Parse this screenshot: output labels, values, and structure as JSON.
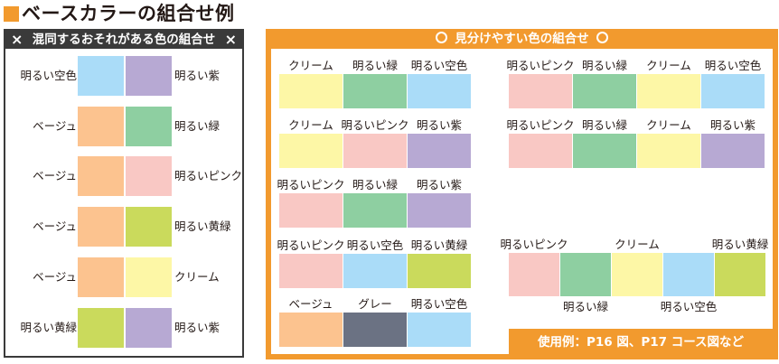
{
  "title": "ベースカラーの組合せ例",
  "colors": {
    "skyblue": "#aadcf8",
    "purple": "#b7a9d3",
    "beige": "#fcc38f",
    "green": "#8ecfa1",
    "pink": "#f9c8c4",
    "yellowgreen": "#cada5c",
    "cream": "#fdf7a6",
    "gray": "#6b7283",
    "orange": "#f29a2e",
    "dark": "#3a3a3a"
  },
  "bad": {
    "x_icon": "×",
    "heading": "混同するおそれがある色の組合せ",
    "rows": [
      {
        "left_label": "明るい空色",
        "left_color": "#aadcf8",
        "right_color": "#b7a9d3",
        "right_label": "明るい紫"
      },
      {
        "left_label": "ベージュ",
        "left_color": "#fcc38f",
        "right_color": "#8ecfa1",
        "right_label": "明るい緑"
      },
      {
        "left_label": "ベージュ",
        "left_color": "#fcc38f",
        "right_color": "#f9c8c4",
        "right_label": "明るいピンク"
      },
      {
        "left_label": "ベージュ",
        "left_color": "#fcc38f",
        "right_color": "#cada5c",
        "right_label": "明るい黄緑"
      },
      {
        "left_label": "ベージュ",
        "left_color": "#fcc38f",
        "right_color": "#fdf7a6",
        "right_label": "クリーム"
      },
      {
        "left_label": "明るい黄緑",
        "left_color": "#cada5c",
        "right_color": "#b7a9d3",
        "right_label": "明るい紫"
      }
    ]
  },
  "good": {
    "heading": "見分けやすい色の組合せ",
    "left_groups": [
      {
        "labels": [
          "クリーム",
          "明るい緑",
          "明るい空色"
        ],
        "colors": [
          "#fdf7a6",
          "#8ecfa1",
          "#aadcf8"
        ]
      },
      {
        "labels": [
          "クリーム",
          "明るいピンク",
          "明るい紫"
        ],
        "colors": [
          "#fdf7a6",
          "#f9c8c4",
          "#b7a9d3"
        ]
      },
      {
        "labels": [
          "明るいピンク",
          "明るい緑",
          "明るい紫"
        ],
        "colors": [
          "#f9c8c4",
          "#8ecfa1",
          "#b7a9d3"
        ]
      },
      {
        "labels": [
          "明るいピンク",
          "明るい空色",
          "明るい黄緑"
        ],
        "colors": [
          "#f9c8c4",
          "#aadcf8",
          "#cada5c"
        ]
      },
      {
        "labels": [
          "ベージュ",
          "グレー",
          "明るい空色"
        ],
        "colors": [
          "#fcc38f",
          "#6b7283",
          "#aadcf8"
        ]
      }
    ],
    "right_groups": [
      {
        "labels": [
          "明るいピンク",
          "明るい緑",
          "クリーム",
          "明るい空色"
        ],
        "colors": [
          "#f9c8c4",
          "#8ecfa1",
          "#fdf7a6",
          "#aadcf8"
        ]
      },
      {
        "labels": [
          "明るいピンク",
          "明るい緑",
          "クリーム",
          "明るい紫"
        ],
        "colors": [
          "#f9c8c4",
          "#8ecfa1",
          "#fdf7a6",
          "#b7a9d3"
        ]
      }
    ],
    "five_group": {
      "top_labels": [
        "明るいピンク",
        "クリーム",
        "明るい黄緑"
      ],
      "bottom_labels": [
        "明るい緑",
        "明るい空色"
      ],
      "colors": [
        "#f9c8c4",
        "#8ecfa1",
        "#fdf7a6",
        "#aadcf8",
        "#cada5c"
      ]
    },
    "footer": "使用例：P16 図、P17 コース図など"
  }
}
